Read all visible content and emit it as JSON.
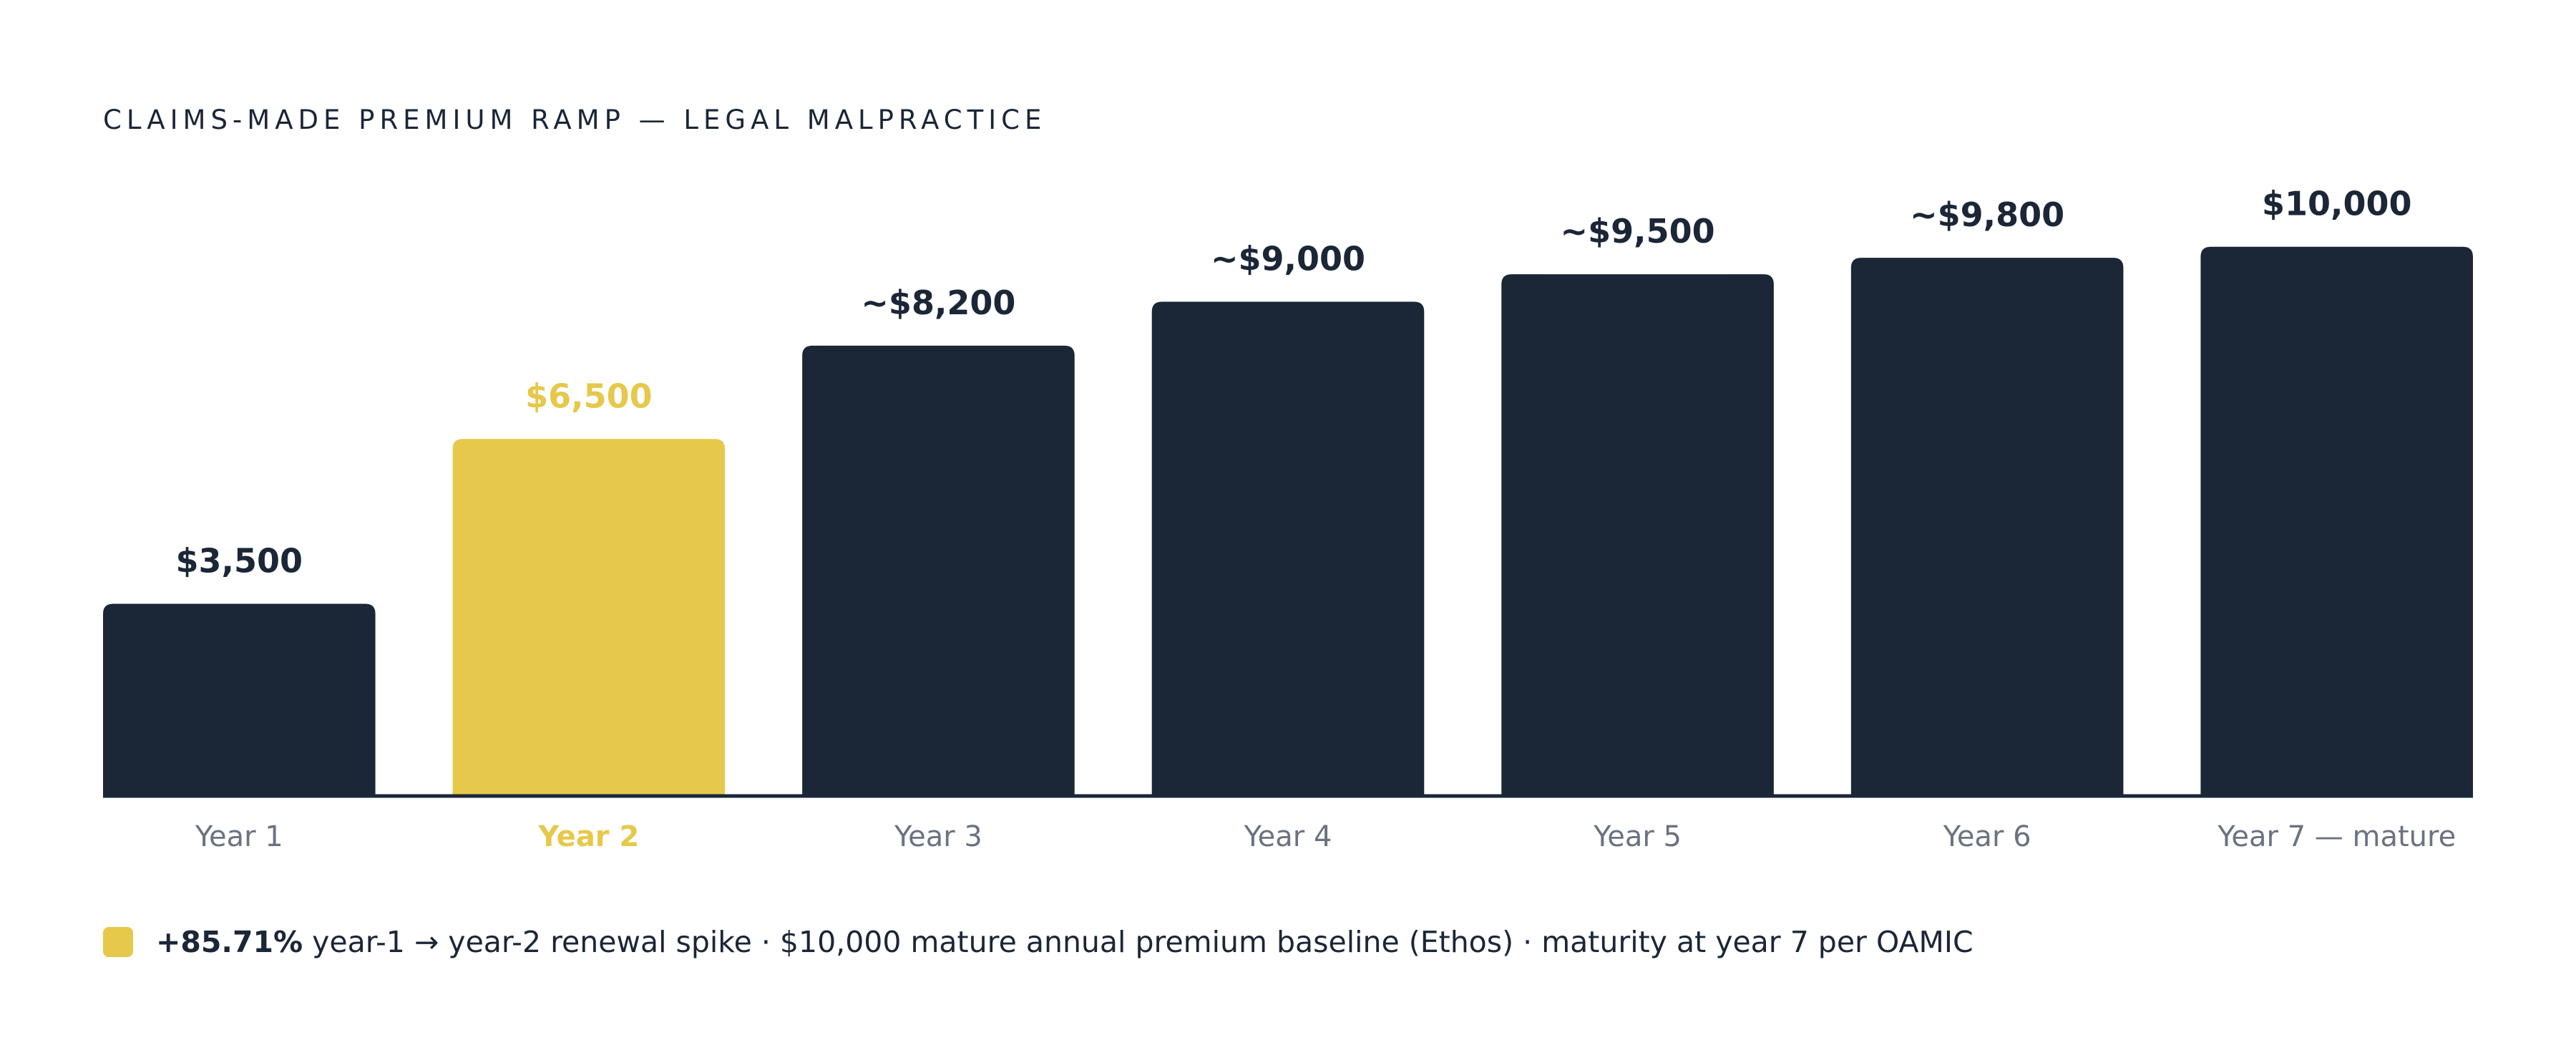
{
  "colors": {
    "bar": "#1b2637",
    "highlight": "#e6c84a",
    "baseline": "#1b2637",
    "category_label": "#6b7280",
    "value_label": "#1b2637"
  },
  "legend": {
    "swatch_color": "#e6c84a",
    "bold": "+85.71%",
    "text": " year-1 → year-2 renewal spike · $10,000 mature annual premium baseline (Ethos) · maturity at year 7 per OAMIC"
  },
  "chart_data": {
    "type": "bar",
    "title": "CLAIMS-MADE PREMIUM RAMP — LEGAL MALPRACTICE",
    "xlabel": "",
    "ylabel": "",
    "ylim": [
      0,
      11300
    ],
    "grid": false,
    "categories": [
      "Year 1",
      "Year 2",
      "Year 3",
      "Year 4",
      "Year 5",
      "Year 6",
      "Year 7 — mature"
    ],
    "values": [
      3500,
      6500,
      8200,
      9000,
      9500,
      9800,
      10000
    ],
    "value_labels": [
      "$3,500",
      "$6,500",
      "~$8,200",
      "~$9,000",
      "~$9,500",
      "~$9,800",
      "$10,000"
    ],
    "highlight_index": 1
  }
}
